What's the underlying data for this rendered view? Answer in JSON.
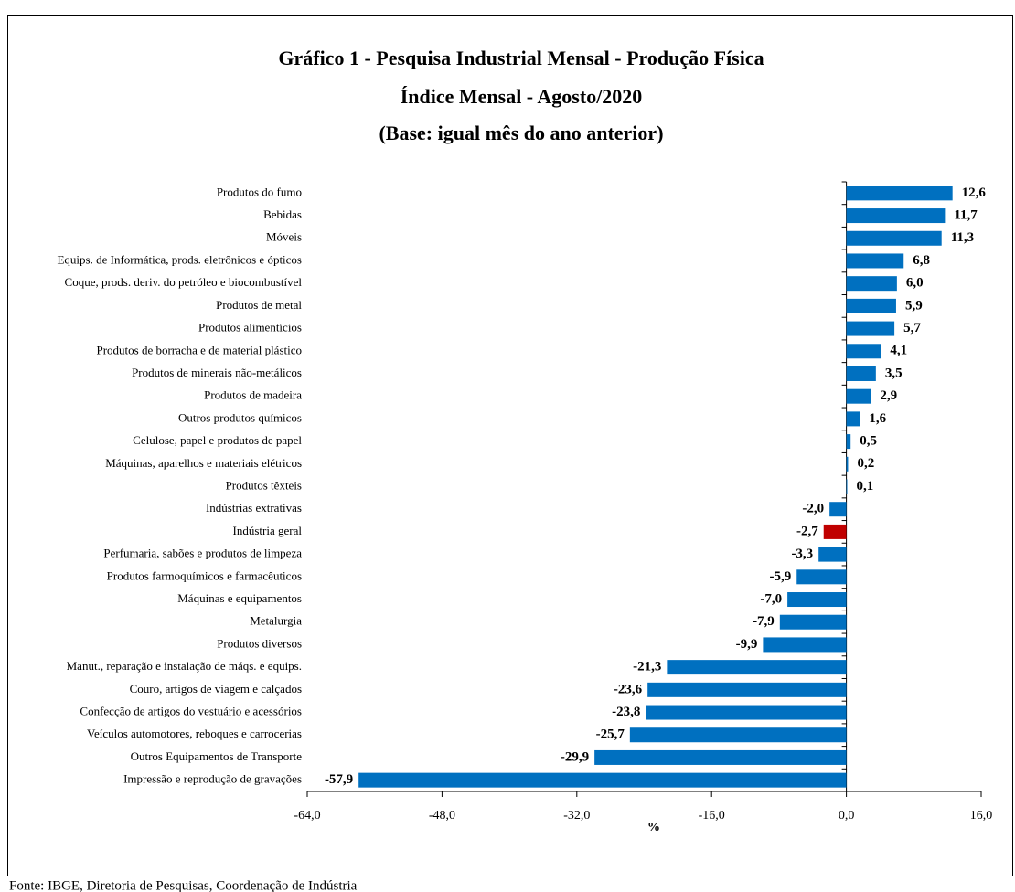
{
  "chart_data": {
    "type": "barh",
    "title": [
      "Gráfico 1 - Pesquisa Industrial Mensal - Produção Física",
      "Índice Mensal - Agosto/2020",
      "(Base: igual mês do ano anterior)"
    ],
    "categories": [
      "Produtos do fumo",
      "Bebidas",
      "Móveis",
      "Equips. de Informática, prods. eletrônicos e ópticos",
      "Coque, prods. deriv. do petróleo e biocombustível",
      "Produtos de metal",
      "Produtos alimentícios",
      "Produtos de borracha e de material plástico",
      "Produtos de minerais não-metálicos",
      "Produtos de madeira",
      "Outros produtos químicos",
      "Celulose, papel e produtos de papel",
      "Máquinas, aparelhos e materiais elétricos",
      "Produtos têxteis",
      "Indústrias extrativas",
      "Indústria geral",
      "Perfumaria, sabões e produtos de limpeza",
      "Produtos farmoquímicos e farmacêuticos",
      "Máquinas e equipamentos",
      "Metalurgia",
      "Produtos diversos",
      "Manut., reparação e instalação de máqs. e equips.",
      "Couro, artigos de viagem e calçados",
      "Confecção de artigos do vestuário e acessórios",
      "Veículos automotores, reboques e carrocerias",
      "Outros Equipamentos de Transporte",
      "Impressão e reprodução de gravações"
    ],
    "values": [
      12.6,
      11.7,
      11.3,
      6.8,
      6.0,
      5.9,
      5.7,
      4.1,
      3.5,
      2.9,
      1.6,
      0.5,
      0.2,
      0.1,
      -2.0,
      -2.7,
      -3.3,
      -5.9,
      -7.0,
      -7.9,
      -9.9,
      -21.3,
      -23.6,
      -23.8,
      -25.7,
      -29.9,
      -57.9
    ],
    "value_labels": [
      "12,6",
      "11,7",
      "11,3",
      "6,8",
      "6,0",
      "5,9",
      "5,7",
      "4,1",
      "3,5",
      "2,9",
      "1,6",
      "0,5",
      "0,2",
      "0,1",
      "-2,0",
      "-2,7",
      "-3,3",
      "-5,9",
      "-7,0",
      "-7,9",
      "-9,9",
      "-21,3",
      "-23,6",
      "-23,8",
      "-25,7",
      "-29,9",
      "-57,9"
    ],
    "colors": [
      "#0070c0",
      "#0070c0",
      "#0070c0",
      "#0070c0",
      "#0070c0",
      "#0070c0",
      "#0070c0",
      "#0070c0",
      "#0070c0",
      "#0070c0",
      "#0070c0",
      "#0070c0",
      "#0070c0",
      "#0070c0",
      "#0070c0",
      "#c00000",
      "#0070c0",
      "#0070c0",
      "#0070c0",
      "#0070c0",
      "#0070c0",
      "#0070c0",
      "#0070c0",
      "#0070c0",
      "#0070c0",
      "#0070c0",
      "#0070c0"
    ],
    "xlabel": "%",
    "xlim": [
      -64,
      16
    ],
    "xticks": [
      {
        "value": -64,
        "label": "-64,0"
      },
      {
        "value": -48,
        "label": "-48,0"
      },
      {
        "value": -32,
        "label": "-32,0"
      },
      {
        "value": -16,
        "label": "-16,0"
      },
      {
        "value": 0,
        "label": "0,0"
      },
      {
        "value": 16,
        "label": "16,0"
      }
    ],
    "source": "Fonte: IBGE, Diretoria de Pesquisas, Coordenação de Indústria"
  }
}
